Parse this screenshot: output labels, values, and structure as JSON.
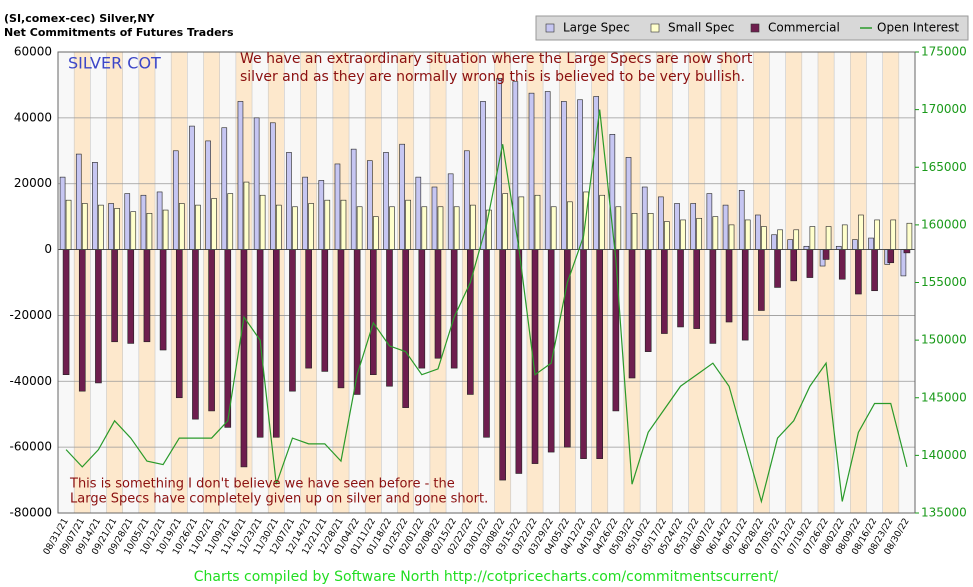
{
  "chart_data": {
    "type": "bar",
    "title": "(SI,comex-cec) Silver,NY",
    "subtitle": "Net Commitments of Futures Traders",
    "label": "SILVER COT",
    "annotations": [
      "We have an extraordinary situation where the Large Specs are now short",
      "silver and as they are normally      wrong this is believed to be very bullish.",
      "This is something I don't believe we have seen before -  the",
      "Large Specs have completely given up on silver and gone short."
    ],
    "footer": "Charts compiled by Software North  http://cotpricecharts.com/commitmentscurrent/",
    "categories": [
      "08/31/21",
      "09/07/21",
      "09/14/21",
      "09/21/21",
      "09/28/21",
      "10/05/21",
      "10/12/21",
      "10/19/21",
      "10/26/21",
      "11/02/21",
      "11/09/21",
      "11/16/21",
      "11/23/21",
      "11/30/21",
      "12/07/21",
      "12/14/21",
      "12/21/21",
      "12/28/21",
      "01/04/22",
      "01/11/22",
      "01/18/22",
      "01/25/22",
      "02/01/22",
      "02/08/22",
      "02/15/22",
      "02/22/22",
      "03/01/22",
      "03/08/22",
      "03/15/22",
      "03/22/22",
      "03/29/22",
      "04/05/22",
      "04/12/22",
      "04/19/22",
      "04/26/22",
      "05/03/22",
      "05/10/22",
      "05/17/22",
      "05/24/22",
      "05/31/22",
      "06/07/22",
      "06/14/22",
      "06/21/22",
      "06/28/22",
      "07/05/22",
      "07/12/22",
      "07/19/22",
      "07/26/22",
      "08/02/22",
      "08/09/22",
      "08/16/22",
      "08/23/22",
      "08/30/22"
    ],
    "series": [
      {
        "name": "Large Spec",
        "type": "bar",
        "color": "#c6c6f2",
        "values": [
          22000,
          29000,
          26500,
          14000,
          17000,
          16500,
          17500,
          30000,
          37500,
          33000,
          37000,
          45000,
          40000,
          38500,
          29500,
          22000,
          21000,
          26000,
          30500,
          27000,
          29500,
          32000,
          22000,
          19000,
          23000,
          30000,
          45000,
          52000,
          51000,
          47500,
          48000,
          45000,
          45500,
          46500,
          35000,
          28000,
          19000,
          16000,
          14000,
          14000,
          17000,
          13500,
          18000,
          10500,
          4500,
          3000,
          1000,
          -5000,
          1000,
          3000,
          3500,
          -4500,
          -8000
        ]
      },
      {
        "name": "Small Spec",
        "type": "bar",
        "color": "#ffffcc",
        "values": [
          15000,
          14000,
          13500,
          12500,
          11500,
          11000,
          12000,
          14000,
          13500,
          15500,
          17000,
          20500,
          16500,
          13500,
          13000,
          14000,
          15000,
          15000,
          13000,
          10000,
          13000,
          15000,
          13000,
          13000,
          13000,
          13500,
          12000,
          17000,
          16000,
          16500,
          13000,
          14500,
          17500,
          16500,
          13000,
          11000,
          11000,
          8500,
          9000,
          9500,
          10000,
          7500,
          9000,
          7000,
          6000,
          6000,
          7000,
          7000,
          7500,
          10500,
          9000,
          9000,
          8000
        ]
      },
      {
        "name": "Commercial",
        "type": "bar",
        "color": "#6e1e4e",
        "values": [
          -38000,
          -43000,
          -40500,
          -28000,
          -28500,
          -28000,
          -30500,
          -45000,
          -51500,
          -49000,
          -54000,
          -66000,
          -57000,
          -57000,
          -43000,
          -36000,
          -37000,
          -42000,
          -44000,
          -38000,
          -41500,
          -48000,
          -36000,
          -33000,
          -36000,
          -44000,
          -57000,
          -70000,
          -68000,
          -65000,
          -61500,
          -60000,
          -63500,
          -63500,
          -49000,
          -39000,
          -31000,
          -25500,
          -23500,
          -24000,
          -28500,
          -22000,
          -27500,
          -18500,
          -11500,
          -9500,
          -8500,
          -3000,
          -9000,
          -13500,
          -12500,
          -4000,
          -1000
        ]
      },
      {
        "name": "Open Interest",
        "type": "line",
        "axis": "y2",
        "color": "#2a9a2a",
        "values": [
          140500,
          139000,
          140500,
          143000,
          141500,
          139500,
          139200,
          141500,
          141500,
          141500,
          143000,
          152000,
          150000,
          137500,
          141500,
          141000,
          141000,
          139500,
          147000,
          151500,
          149500,
          149000,
          147000,
          147500,
          152000,
          155000,
          160000,
          167000,
          158000,
          147000,
          148000,
          155000,
          159000,
          170000,
          157000,
          137500,
          142000,
          144000,
          146000,
          147000,
          148000,
          146000,
          141000,
          136000,
          141500,
          143000,
          146000,
          148000,
          136000,
          142000,
          144500,
          144500,
          139000
        ]
      }
    ],
    "ylim": [
      -80000,
      60000
    ],
    "yticks": [
      -80000,
      -60000,
      -40000,
      -20000,
      0,
      20000,
      40000,
      60000
    ],
    "y2lim": [
      135000,
      175000
    ],
    "y2ticks": [
      135000,
      140000,
      145000,
      150000,
      155000,
      160000,
      165000,
      170000,
      175000
    ],
    "grid": true,
    "legend": "top-right"
  }
}
